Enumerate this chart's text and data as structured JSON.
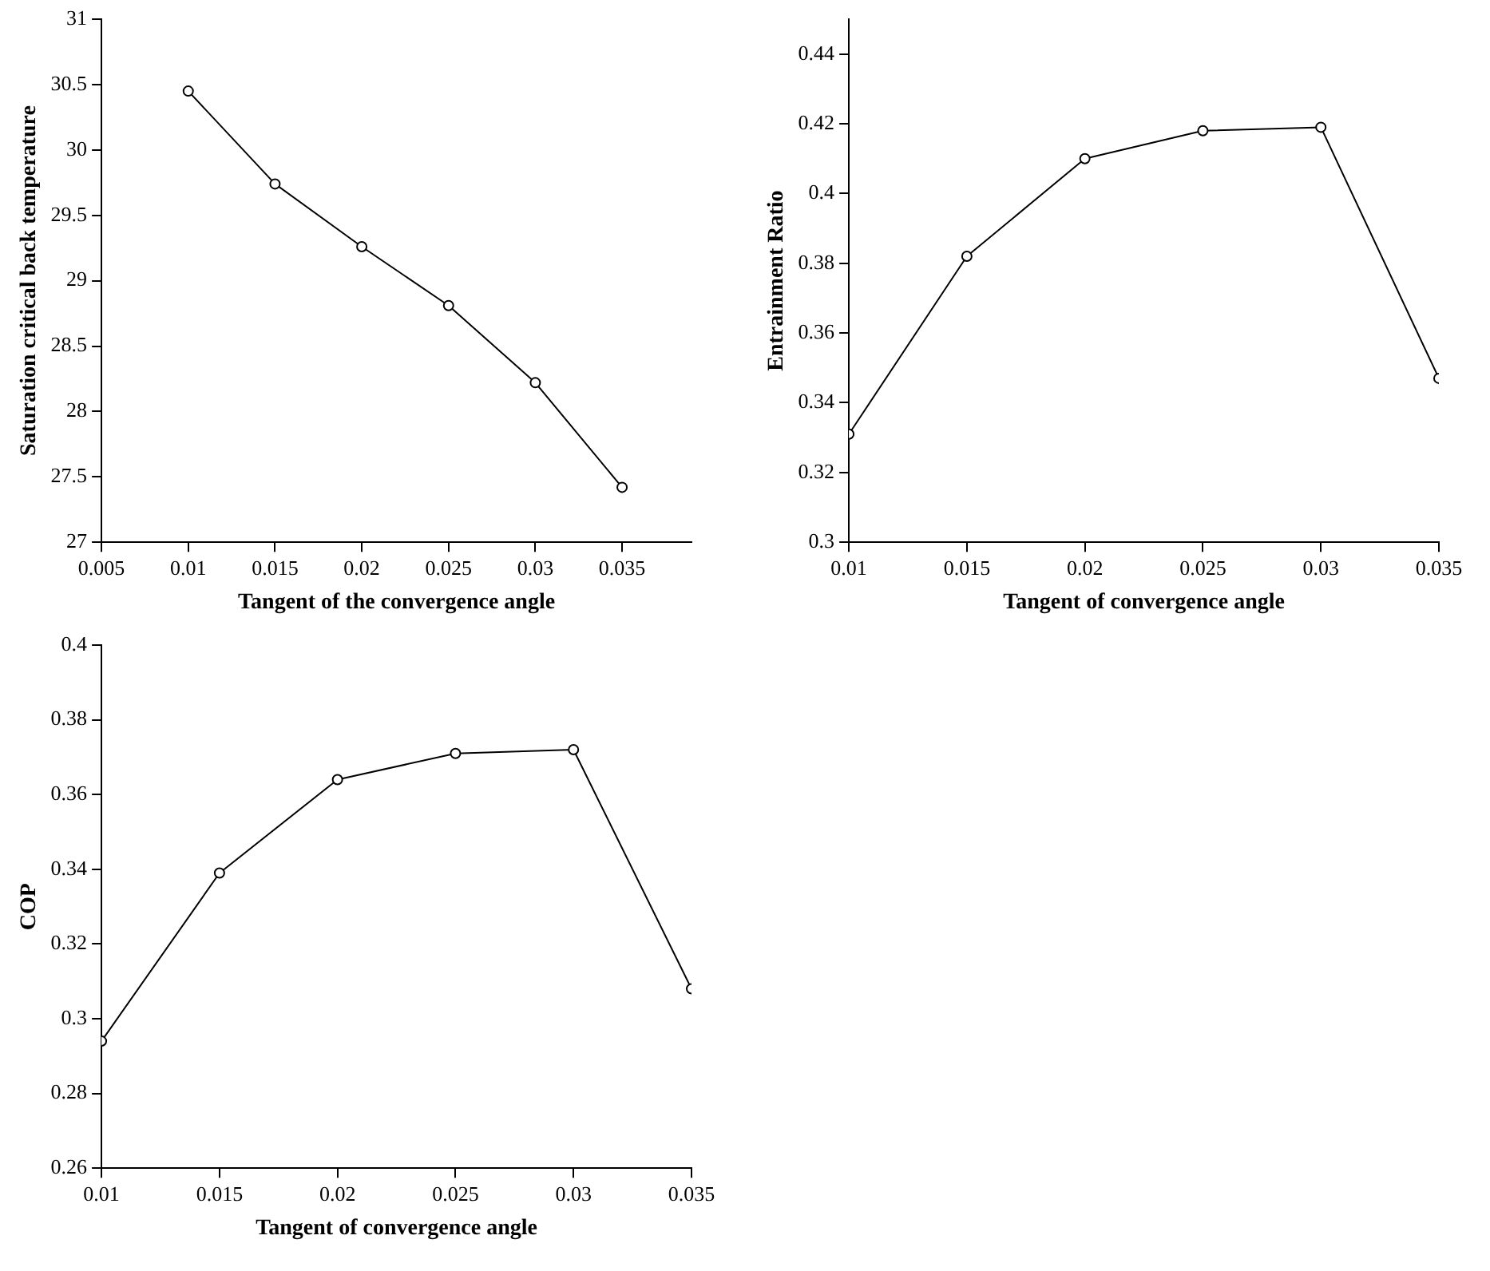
{
  "chart_data": [
    {
      "type": "line",
      "xlabel": "Tangent of the convergence angle",
      "ylabel": "Saturation critical back temperature",
      "x": [
        0.01,
        0.015,
        0.02,
        0.025,
        0.03,
        0.035
      ],
      "values": [
        30.45,
        29.74,
        29.26,
        28.81,
        28.22,
        27.42
      ],
      "color": "#000000",
      "marker": "circle",
      "xlim": [
        0.005,
        0.039
      ],
      "xticks": [
        0.005,
        0.01,
        0.015,
        0.02,
        0.025,
        0.03,
        0.035
      ],
      "ylim": [
        27,
        31
      ],
      "yticks": [
        27,
        27.5,
        28,
        28.5,
        29,
        29.5,
        30,
        30.5,
        31
      ],
      "grid": false,
      "legend": false
    },
    {
      "type": "line",
      "xlabel": "Tangent of convergence angle",
      "ylabel": "Entrainment Ratio",
      "x": [
        0.01,
        0.015,
        0.02,
        0.025,
        0.03,
        0.035
      ],
      "values": [
        0.331,
        0.382,
        0.41,
        0.418,
        0.419,
        0.347
      ],
      "color": "#000000",
      "marker": "circle",
      "xlim": [
        0.01,
        0.035
      ],
      "xticks": [
        0.01,
        0.015,
        0.02,
        0.025,
        0.03,
        0.035
      ],
      "ylim": [
        0.3,
        0.45
      ],
      "yticks": [
        0.3,
        0.32,
        0.34,
        0.36,
        0.38,
        0.4,
        0.42,
        0.44
      ],
      "grid": false,
      "legend": false
    },
    {
      "type": "line",
      "xlabel": "Tangent of convergence angle",
      "ylabel": "COP",
      "x": [
        0.01,
        0.015,
        0.02,
        0.025,
        0.03,
        0.035
      ],
      "values": [
        0.294,
        0.339,
        0.364,
        0.371,
        0.372,
        0.308
      ],
      "color": "#000000",
      "marker": "circle",
      "xlim": [
        0.01,
        0.035
      ],
      "xticks": [
        0.01,
        0.015,
        0.02,
        0.025,
        0.03,
        0.035
      ],
      "ylim": [
        0.26,
        0.4
      ],
      "yticks": [
        0.26,
        0.28,
        0.3,
        0.32,
        0.34,
        0.36,
        0.38,
        0.4
      ],
      "grid": false,
      "legend": false
    }
  ]
}
